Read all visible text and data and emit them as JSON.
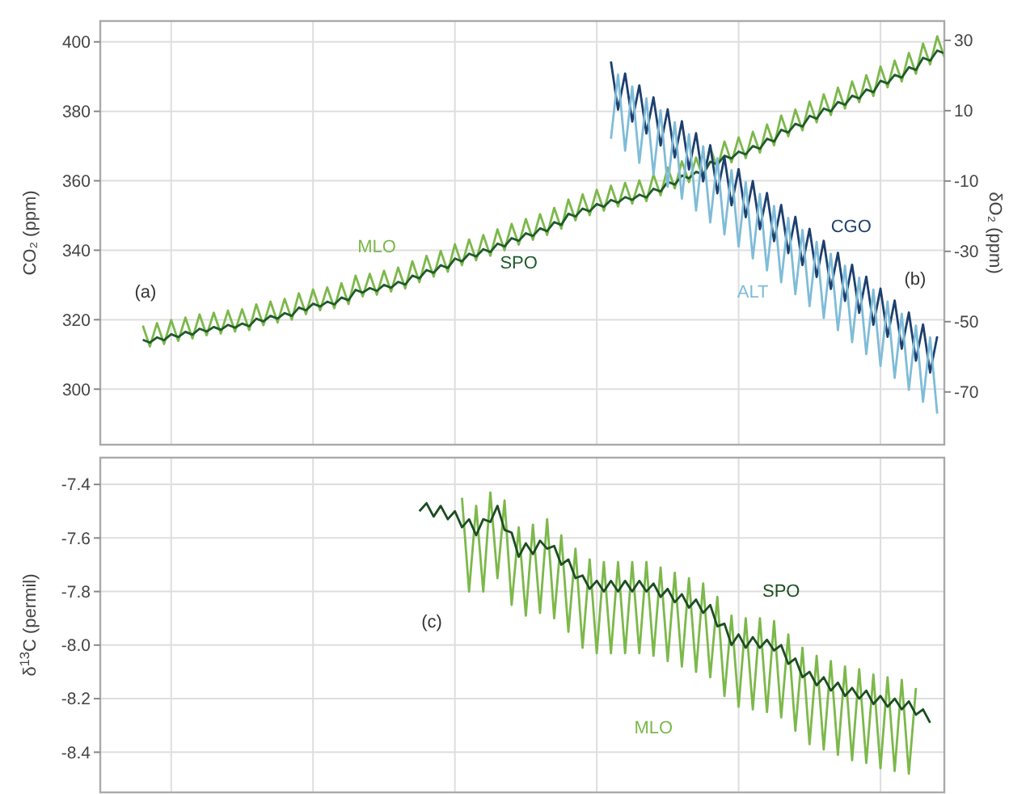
{
  "chart_data": [
    {
      "type": "line",
      "ylabel": "CO₂ (ppm)",
      "y2label": "δO₂ (ppm)",
      "tick_labels": "y",
      "grid": true,
      "ylim": [
        284,
        406
      ],
      "yticks": [
        300,
        320,
        340,
        360,
        380,
        400
      ],
      "y2lim": [
        -85,
        35.5
      ],
      "y2ticks": [
        30,
        10,
        -10,
        -30,
        -50,
        -70
      ],
      "annotations": [
        "(a)",
        "(b)"
      ],
      "categories": [
        null,
        null,
        null,
        null,
        null,
        null,
        null,
        null,
        null,
        null,
        null,
        null,
        null,
        null,
        null,
        null,
        null,
        null,
        null,
        null,
        null,
        null,
        null,
        null,
        null,
        null,
        null,
        null,
        null,
        null,
        null,
        null,
        null,
        null,
        null,
        null,
        null,
        null,
        null,
        null,
        null,
        null,
        null,
        null,
        null,
        null,
        null,
        null,
        null,
        null,
        null,
        null,
        null,
        null,
        null,
        null,
        null,
        null,
        null,
        null,
        null,
        null,
        null,
        null,
        null,
        null,
        null,
        null,
        null,
        null,
        null,
        null,
        null,
        null,
        null,
        null,
        null,
        null,
        null,
        null,
        null,
        null,
        null,
        null,
        null,
        null,
        null,
        null,
        null,
        null,
        null,
        null,
        null,
        null,
        null,
        null,
        null,
        null,
        null,
        null,
        null,
        null,
        null,
        null,
        null,
        null,
        null,
        null,
        null,
        null,
        null,
        null,
        null,
        null,
        null,
        null,
        null,
        null,
        null,
        null
      ],
      "series": [
        {
          "name": "MLO",
          "color": "#7cb84a",
          "values": [
            null,
            null,
            null,
            null,
            null,
            null,
            318.3,
            312.3,
            319.0,
            313.0,
            319.9,
            313.9,
            320.6,
            314.6,
            321.5,
            315.5,
            322.0,
            316.0,
            322.6,
            316.6,
            323.0,
            317.0,
            324.4,
            318.4,
            325.2,
            319.2,
            326.0,
            320.0,
            327.6,
            321.6,
            328.7,
            322.7,
            329.3,
            323.3,
            330.5,
            324.5,
            332.7,
            326.7,
            333.2,
            327.2,
            334.1,
            328.1,
            335.0,
            329.0,
            336.8,
            330.8,
            338.4,
            332.4,
            339.8,
            333.8,
            341.7,
            335.7,
            343.1,
            337.1,
            344.4,
            338.4,
            346.0,
            340.0,
            347.6,
            341.6,
            349.0,
            343.0,
            350.4,
            344.4,
            352.2,
            346.2,
            354.6,
            348.6,
            356.1,
            350.1,
            357.4,
            351.4,
            358.6,
            352.6,
            359.4,
            353.4,
            360.1,
            354.1,
            361.8,
            355.8,
            363.8,
            357.8,
            365.6,
            359.6,
            366.7,
            360.7,
            369.6,
            363.6,
            371.3,
            365.3,
            372.5,
            366.5,
            374.1,
            368.1,
            376.2,
            370.2,
            378.8,
            372.8,
            380.5,
            374.5,
            382.8,
            376.8,
            384.9,
            378.9,
            386.8,
            380.8,
            388.6,
            382.6,
            390.4,
            384.4,
            392.9,
            386.9,
            394.6,
            388.6,
            396.8,
            390.8,
            399.5,
            393.5,
            401.6,
            395.6
          ]
        },
        {
          "name": "SPO",
          "color": "#1f5a2c",
          "values": [
            null,
            null,
            null,
            null,
            null,
            null,
            314.2,
            313.4,
            314.9,
            314.1,
            315.8,
            315.0,
            316.5,
            315.7,
            317.4,
            316.6,
            317.9,
            317.1,
            318.5,
            317.7,
            318.9,
            318.1,
            320.3,
            319.5,
            321.1,
            320.3,
            321.9,
            321.1,
            323.5,
            322.7,
            324.6,
            323.8,
            325.2,
            324.4,
            326.4,
            325.6,
            328.6,
            327.8,
            329.1,
            328.3,
            330.0,
            329.2,
            330.9,
            330.1,
            332.7,
            331.9,
            334.3,
            333.5,
            335.7,
            334.9,
            337.6,
            336.8,
            339.0,
            338.2,
            340.3,
            339.5,
            341.9,
            341.1,
            343.5,
            342.7,
            344.9,
            344.1,
            346.3,
            345.5,
            348.1,
            347.3,
            350.5,
            349.7,
            352.0,
            351.2,
            353.3,
            352.5,
            354.5,
            353.7,
            355.3,
            354.5,
            356.0,
            355.2,
            357.7,
            356.9,
            359.7,
            358.9,
            361.5,
            360.7,
            362.6,
            361.8,
            365.5,
            364.7,
            367.2,
            366.4,
            368.4,
            367.6,
            370.0,
            369.2,
            372.1,
            371.3,
            374.7,
            373.9,
            376.4,
            375.6,
            378.7,
            377.9,
            380.8,
            380.0,
            382.7,
            381.9,
            384.5,
            383.7,
            386.3,
            385.5,
            388.8,
            388.0,
            390.5,
            389.7,
            392.7,
            391.9,
            395.4,
            394.6,
            397.5,
            396.7
          ]
        },
        {
          "name": "CGO",
          "color": "#1d3f6e",
          "axis": "y2",
          "values": [
            null,
            null,
            null,
            null,
            null,
            null,
            null,
            null,
            null,
            null,
            null,
            null,
            null,
            null,
            null,
            null,
            null,
            null,
            null,
            null,
            null,
            null,
            null,
            null,
            null,
            null,
            null,
            null,
            null,
            null,
            null,
            null,
            null,
            null,
            null,
            null,
            null,
            null,
            null,
            null,
            null,
            null,
            null,
            null,
            null,
            null,
            null,
            null,
            null,
            null,
            null,
            null,
            null,
            null,
            null,
            null,
            null,
            null,
            null,
            null,
            null,
            null,
            null,
            null,
            null,
            null,
            null,
            null,
            null,
            null,
            null,
            null,
            24,
            10.3,
            20.6,
            6.9,
            17.2,
            3.5,
            13.8,
            0.1,
            10.4,
            -3.3,
            7.0,
            -6.7,
            3.6,
            -10.1,
            0.2,
            -13.5,
            -3.2,
            -16.9,
            -6.6,
            -20.3,
            -10.0,
            -23.7,
            -13.4,
            -27.1,
            -16.8,
            -30.5,
            -20.2,
            -33.9,
            -23.6,
            -37.3,
            -27.0,
            -40.7,
            -30.4,
            -44.1,
            -33.8,
            -47.5,
            -37.2,
            -50.9,
            -40.6,
            -54.3,
            -44.0,
            -57.7,
            -47.4,
            -61.1,
            -50.8,
            -64.5,
            -54.2,
            null
          ]
        },
        {
          "name": "ALT",
          "color": "#7fbcd8",
          "axis": "y2",
          "values": [
            null,
            null,
            null,
            null,
            null,
            null,
            null,
            null,
            null,
            null,
            null,
            null,
            null,
            null,
            null,
            null,
            null,
            null,
            null,
            null,
            null,
            null,
            null,
            null,
            null,
            null,
            null,
            null,
            null,
            null,
            null,
            null,
            null,
            null,
            null,
            null,
            null,
            null,
            null,
            null,
            null,
            null,
            null,
            null,
            null,
            null,
            null,
            null,
            null,
            null,
            null,
            null,
            null,
            null,
            null,
            null,
            null,
            null,
            null,
            null,
            null,
            null,
            null,
            null,
            null,
            null,
            null,
            null,
            null,
            null,
            null,
            null,
            2,
            20.3,
            -1.4,
            16.9,
            -4.8,
            13.5,
            -8.2,
            10.1,
            -11.6,
            6.7,
            -15.0,
            3.3,
            -18.4,
            -0.1,
            -21.8,
            -3.5,
            -25.2,
            -6.9,
            -28.6,
            -10.3,
            -32.0,
            -13.7,
            -35.4,
            -17.1,
            -38.8,
            -20.5,
            -42.2,
            -23.9,
            -45.6,
            -27.3,
            -49.0,
            -30.7,
            -52.4,
            -34.1,
            -55.8,
            -37.5,
            -59.2,
            -40.9,
            -62.6,
            -44.3,
            -66.0,
            -47.7,
            -69.4,
            -51.1,
            -72.8,
            -54.5,
            -76.2,
            null
          ]
        }
      ]
    },
    {
      "type": "line",
      "ylabel": "δ$^{13}$C (permil)",
      "tick_labels": "y",
      "grid": true,
      "ylim": [
        -8.55,
        -7.3
      ],
      "yticks": [
        -7.4,
        -7.6,
        -7.8,
        {
          "value": -8,
          "label": "-8.0"
        },
        -8.2,
        -8.4
      ],
      "annotations": [
        "(c)"
      ],
      "categories": [
        null,
        null,
        null,
        null,
        null,
        null,
        null,
        null,
        null,
        null,
        null,
        null,
        null,
        null,
        null,
        null,
        null,
        null,
        null,
        null,
        null,
        null,
        null,
        null,
        null,
        null,
        null,
        null,
        null,
        null,
        null,
        null,
        null,
        null,
        null,
        null,
        null,
        null,
        null,
        null,
        null,
        null,
        null,
        null,
        null,
        null,
        null,
        null,
        null,
        null,
        null,
        null,
        null,
        null,
        null,
        null,
        null,
        null,
        null,
        null,
        null,
        null,
        null,
        null,
        null,
        null,
        null,
        null,
        null,
        null,
        null,
        null,
        null,
        null,
        null,
        null,
        null,
        null,
        null,
        null,
        null,
        null,
        null,
        null,
        null,
        null,
        null,
        null,
        null,
        null,
        null,
        null,
        null,
        null,
        null,
        null,
        null,
        null,
        null,
        null,
        null,
        null,
        null,
        null,
        null,
        null,
        null,
        null,
        null,
        null,
        null,
        null,
        null,
        null,
        null,
        null,
        null,
        null,
        null,
        null
      ],
      "series": [
        {
          "name": "MLO",
          "color": "#7cb84a",
          "values": [
            null,
            null,
            null,
            null,
            null,
            null,
            null,
            null,
            null,
            null,
            null,
            null,
            null,
            null,
            null,
            null,
            null,
            null,
            null,
            null,
            null,
            null,
            null,
            null,
            null,
            null,
            null,
            null,
            null,
            null,
            null,
            null,
            null,
            null,
            null,
            null,
            null,
            null,
            null,
            null,
            null,
            null,
            null,
            null,
            null,
            null,
            null,
            null,
            null,
            null,
            null,
            -7.45,
            -7.8,
            -7.48,
            -7.8,
            -7.43,
            -7.75,
            -7.46,
            -7.85,
            -7.56,
            -7.89,
            -7.55,
            -7.88,
            -7.53,
            -7.9,
            -7.59,
            -7.95,
            -7.64,
            -8.01,
            -7.68,
            -8.03,
            -7.69,
            -8.03,
            -7.69,
            -8.03,
            -7.69,
            -8.03,
            -7.69,
            -8.04,
            -7.71,
            -8.06,
            -7.73,
            -8.08,
            -7.75,
            -8.1,
            -7.77,
            -8.12,
            -7.82,
            -8.19,
            -7.89,
            -8.23,
            -7.9,
            -8.24,
            -7.9,
            -8.25,
            -7.91,
            -8.27,
            -7.96,
            -8.32,
            -8.01,
            -8.37,
            -8.04,
            -8.39,
            -8.06,
            -8.41,
            -8.08,
            -8.43,
            -8.09,
            -8.44,
            -8.11,
            -8.46,
            -8.12,
            -8.47,
            -8.13,
            -8.48,
            -8.16,
            null,
            null,
            null,
            null
          ]
        },
        {
          "name": "SPO",
          "color": "#1c4d22",
          "values": [
            null,
            null,
            null,
            null,
            null,
            null,
            null,
            null,
            null,
            null,
            null,
            null,
            null,
            null,
            null,
            null,
            null,
            null,
            null,
            null,
            null,
            null,
            null,
            null,
            null,
            null,
            null,
            null,
            null,
            null,
            null,
            null,
            null,
            null,
            null,
            null,
            null,
            null,
            null,
            null,
            null,
            null,
            null,
            null,
            null,
            -7.5,
            -7.47,
            -7.52,
            -7.48,
            -7.53,
            -7.5,
            -7.56,
            -7.53,
            -7.59,
            -7.53,
            -7.54,
            -7.48,
            -7.57,
            -7.58,
            -7.67,
            -7.62,
            -7.66,
            -7.61,
            -7.64,
            -7.63,
            -7.7,
            -7.68,
            -7.75,
            -7.74,
            -7.79,
            -7.76,
            -7.8,
            -7.76,
            -7.8,
            -7.76,
            -7.8,
            -7.76,
            -7.8,
            -7.77,
            -7.82,
            -7.79,
            -7.84,
            -7.81,
            -7.86,
            -7.83,
            -7.88,
            -7.85,
            -7.93,
            -7.92,
            -8.0,
            -7.96,
            -8.01,
            -7.97,
            -8.01,
            -7.98,
            -8.02,
            -8.0,
            -8.07,
            -8.05,
            -8.12,
            -8.1,
            -8.15,
            -8.12,
            -8.17,
            -8.14,
            -8.19,
            -8.16,
            -8.2,
            -8.17,
            -8.22,
            -8.19,
            -8.23,
            -8.2,
            -8.24,
            -8.21,
            -8.26,
            -8.24,
            -8.29,
            null,
            null
          ]
        }
      ]
    }
  ]
}
